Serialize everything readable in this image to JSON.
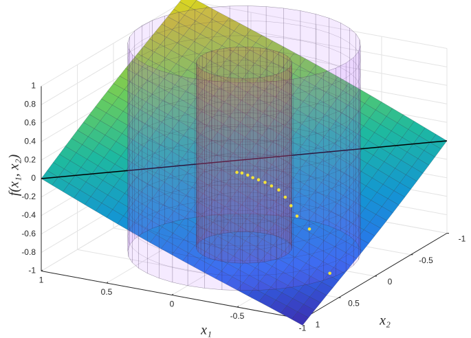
{
  "chart_data": {
    "type": "surface",
    "zlabel": "f(x₁, x₂)",
    "x1label": "x₁",
    "x2label": "x₂",
    "x1lim": [
      -1,
      1
    ],
    "x2lim": [
      -1,
      1
    ],
    "zlim": [
      -1,
      1
    ],
    "x1ticks": [
      1,
      0.5,
      0,
      -0.5,
      -1
    ],
    "x2ticks": [
      -1,
      -0.5,
      0,
      0.5,
      1
    ],
    "zticks": [
      1,
      0.8,
      0.6,
      0.4,
      0.2,
      0,
      -0.2,
      -0.4,
      -0.6,
      -0.8,
      -1
    ],
    "grid": true,
    "points": {
      "color": "#f2e23a",
      "x1": [
        0,
        0,
        0,
        0,
        0,
        0,
        0,
        0,
        0,
        0,
        -0.3,
        -0.5,
        -0.8
      ],
      "x2": [
        0.1,
        0.03,
        -0.05,
        -0.12,
        -0.2,
        -0.29,
        -0.38,
        -0.48,
        -0.57,
        -0.65,
        -0.19,
        0,
        0.26
      ],
      "z": [
        -0.09,
        -0.13,
        -0.19,
        -0.25,
        -0.31,
        -0.38,
        -0.46,
        -0.55,
        -0.67,
        -0.8,
        -0.62,
        -0.62,
        -0.9
      ]
    }
  }
}
